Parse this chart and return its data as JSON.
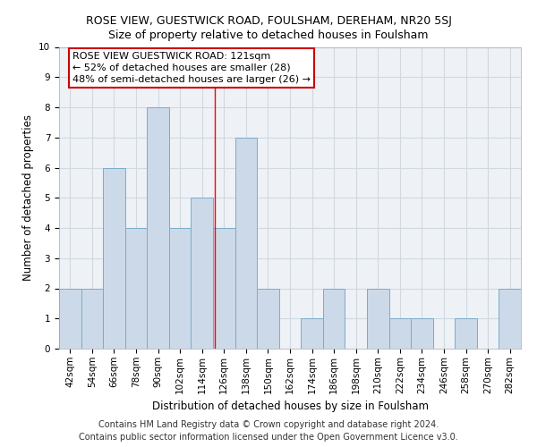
{
  "title": "ROSE VIEW, GUESTWICK ROAD, FOULSHAM, DEREHAM, NR20 5SJ",
  "subtitle": "Size of property relative to detached houses in Foulsham",
  "xlabel": "Distribution of detached houses by size in Foulsham",
  "ylabel": "Number of detached properties",
  "footer_line1": "Contains HM Land Registry data © Crown copyright and database right 2024.",
  "footer_line2": "Contains public sector information licensed under the Open Government Licence v3.0.",
  "bins": [
    42,
    54,
    66,
    78,
    90,
    102,
    114,
    126,
    138,
    150,
    162,
    174,
    186,
    198,
    210,
    222,
    234,
    246,
    258,
    270,
    282
  ],
  "counts": [
    2,
    2,
    6,
    4,
    8,
    4,
    5,
    4,
    7,
    2,
    0,
    1,
    2,
    0,
    2,
    1,
    1,
    0,
    1,
    0,
    2
  ],
  "bar_color": "#ccd9e8",
  "bar_edge_color": "#7aacca",
  "red_line_x": 121,
  "annotation_line1": "ROSE VIEW GUESTWICK ROAD: 121sqm",
  "annotation_line2": "← 52% of detached houses are smaller (28)",
  "annotation_line3": "48% of semi-detached houses are larger (26) →",
  "annotation_box_edge": "#cc0000",
  "ylim": [
    0,
    10
  ],
  "yticks": [
    0,
    1,
    2,
    3,
    4,
    5,
    6,
    7,
    8,
    9,
    10
  ],
  "grid_color": "#d0d8e0",
  "background_color": "#eef2f7",
  "title_fontsize": 9,
  "subtitle_fontsize": 9,
  "axis_label_fontsize": 8.5,
  "tick_fontsize": 7.5,
  "footer_fontsize": 7,
  "annotation_fontsize": 8
}
